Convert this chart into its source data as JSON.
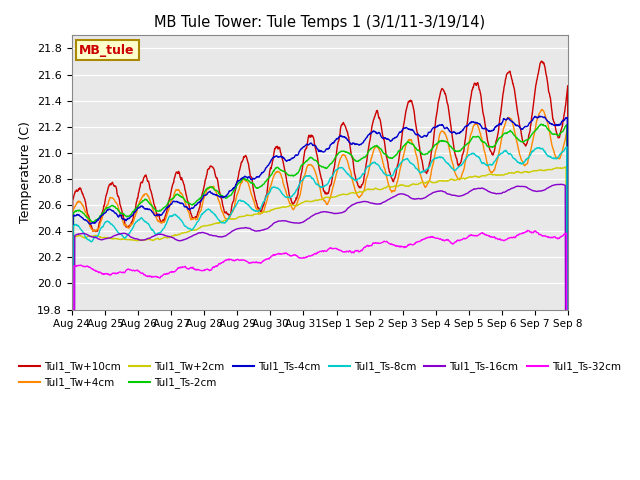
{
  "title": "MB Tule Tower: Tule Temps 1 (3/1/11-3/19/14)",
  "ylabel": "Temperature (C)",
  "ylim": [
    19.8,
    21.9
  ],
  "yticks": [
    19.8,
    20.0,
    20.2,
    20.4,
    20.6,
    20.8,
    21.0,
    21.2,
    21.4,
    21.6,
    21.8
  ],
  "xtick_labels": [
    "Aug 24",
    "Aug 25",
    "Aug 26",
    "Aug 27",
    "Aug 28",
    "Aug 29",
    "Aug 30",
    "Aug 31",
    "Sep 1",
    "Sep 2",
    "Sep 3",
    "Sep 4",
    "Sep 5",
    "Sep 6",
    "Sep 7",
    "Sep 8"
  ],
  "series": [
    {
      "label": "Tul1_Tw+10cm",
      "color": "#cc0000",
      "lw": 1.0
    },
    {
      "label": "Tul1_Tw+4cm",
      "color": "#ff8800",
      "lw": 1.0
    },
    {
      "label": "Tul1_Tw+2cm",
      "color": "#cccc00",
      "lw": 1.0
    },
    {
      "label": "Tul1_Ts-2cm",
      "color": "#00cc00",
      "lw": 1.0
    },
    {
      "label": "Tul1_Ts-4cm",
      "color": "#0000cc",
      "lw": 1.0
    },
    {
      "label": "Tul1_Ts-8cm",
      "color": "#00cccc",
      "lw": 1.0
    },
    {
      "label": "Tul1_Ts-16cm",
      "color": "#8800cc",
      "lw": 1.0
    },
    {
      "label": "Tul1_Ts-32cm",
      "color": "#ff00ff",
      "lw": 1.0
    }
  ],
  "bg_color": "#e8e8e8",
  "legend_box_fc": "#ffffcc",
  "legend_box_ec": "#aa8800",
  "legend_text_color": "#cc0000",
  "legend_label": "MB_tule",
  "figsize": [
    6.4,
    4.8
  ],
  "dpi": 100
}
